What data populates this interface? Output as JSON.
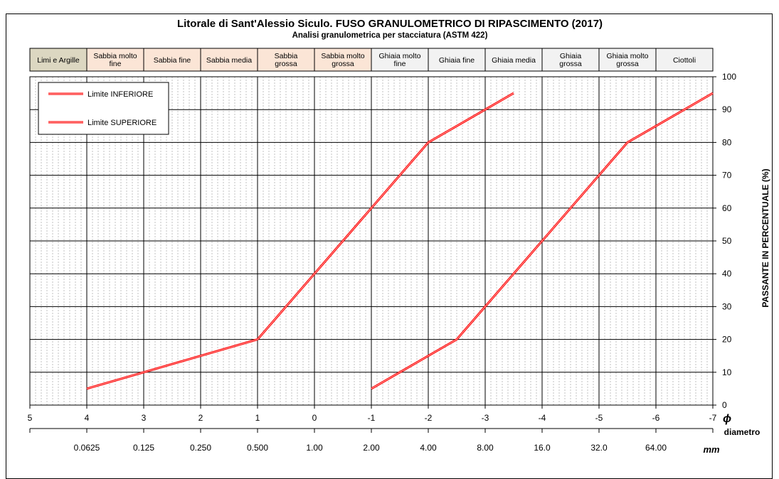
{
  "chart_data": {
    "type": "line",
    "title": "Litorale di Sant'Alessio Siculo. FUSO GRANULOMETRICO DI RIPASCIMENTO (2017)",
    "subtitle": "Analisi granulometrica per stacciatura  (ASTM 422)",
    "xlabel": "ϕ",
    "xlabel2": "diametro",
    "xlabel3": "mm",
    "ylabel": "PASSANTE IN PERCENTUALE  (%)",
    "xlim": [
      5,
      -7
    ],
    "ylim": [
      0,
      100
    ],
    "phi_ticks": [
      "5",
      "4",
      "3",
      "2",
      "1",
      "0",
      "-1",
      "-2",
      "-3",
      "-4",
      "-5",
      "-6",
      "-7"
    ],
    "mm_ticks": [
      {
        "phi": 4,
        "label": "0.0625"
      },
      {
        "phi": 3,
        "label": "0.125"
      },
      {
        "phi": 2,
        "label": "0.250"
      },
      {
        "phi": 1,
        "label": "0.500"
      },
      {
        "phi": 0,
        "label": "1.00"
      },
      {
        "phi": -1,
        "label": "2.00"
      },
      {
        "phi": -2,
        "label": "4.00"
      },
      {
        "phi": -3,
        "label": "8.00"
      },
      {
        "phi": -4,
        "label": "16.0"
      },
      {
        "phi": -5,
        "label": "32.0"
      },
      {
        "phi": -6,
        "label": "64.00"
      }
    ],
    "y_ticks": [
      "0",
      "10",
      "20",
      "30",
      "40",
      "50",
      "60",
      "70",
      "80",
      "90",
      "100"
    ],
    "grid": true,
    "legend_position": "top-left",
    "classes": [
      {
        "label": "Limi e Argille",
        "from": 5,
        "to": 4,
        "color": "#dcd7c1"
      },
      {
        "label": "Sabbia molto fine",
        "from": 4,
        "to": 3,
        "color": "#fbe5d6"
      },
      {
        "label": "Sabbia fine",
        "from": 3,
        "to": 2,
        "color": "#fbe5d6"
      },
      {
        "label": "Sabbia media",
        "from": 2,
        "to": 1,
        "color": "#fbe5d6"
      },
      {
        "label": "Sabbia grossa",
        "from": 1,
        "to": 0,
        "color": "#fbe5d6"
      },
      {
        "label": "Sabbia molto grossa",
        "from": 0,
        "to": -1,
        "color": "#fbe5d6"
      },
      {
        "label": "Ghiaia molto fine",
        "from": -1,
        "to": -2,
        "color": "#f2f2f2"
      },
      {
        "label": "Ghiaia fine",
        "from": -2,
        "to": -3,
        "color": "#f2f2f2"
      },
      {
        "label": "Ghiaia media",
        "from": -3,
        "to": -4,
        "color": "#f2f2f2"
      },
      {
        "label": "Ghiaia grossa",
        "from": -4,
        "to": -5,
        "color": "#f2f2f2"
      },
      {
        "label": "Ghiaia molto grossa",
        "from": -5,
        "to": -6,
        "color": "#f2f2f2"
      },
      {
        "label": "Ciottoli",
        "from": -6,
        "to": -7,
        "color": "#f2f2f2"
      }
    ],
    "series": [
      {
        "name": "Limite INFERIORE",
        "color": "#ff0000",
        "points": [
          [
            1,
            20
          ],
          [
            0,
            40
          ],
          [
            -1,
            60
          ],
          [
            -2,
            80
          ],
          [
            -3,
            90
          ],
          [
            -3.5,
            95
          ]
        ]
      },
      {
        "name": "Limite SUPERIORE",
        "color": "#ff0000",
        "points": [
          [
            4,
            5
          ],
          [
            3,
            10
          ],
          [
            2,
            15
          ],
          [
            1,
            20
          ]
        ]
      },
      {
        "name": "",
        "color": "#ff0000",
        "points": [
          [
            -1,
            5
          ],
          [
            -1.5,
            10
          ],
          [
            -2,
            15
          ],
          [
            -2.5,
            20
          ],
          [
            -3,
            30
          ],
          [
            -3.5,
            40
          ],
          [
            -4,
            50
          ],
          [
            -4.5,
            60
          ],
          [
            -5,
            70
          ],
          [
            -5.5,
            80
          ],
          [
            -6,
            85
          ],
          [
            -7,
            95
          ]
        ]
      }
    ]
  }
}
